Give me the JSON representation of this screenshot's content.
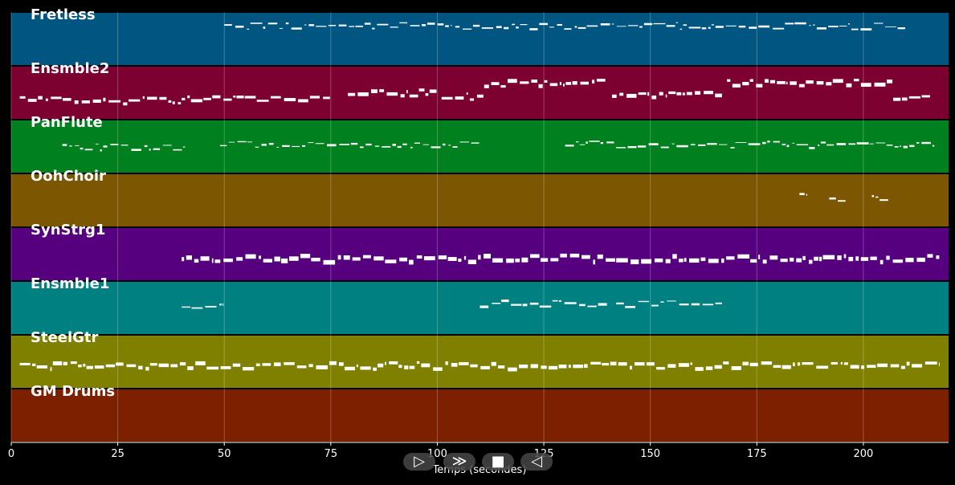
{
  "chart_data": {
    "type": "piano-roll",
    "xlabel": "Temps (secondes)",
    "xlim": [
      0,
      220
    ],
    "xticks": [
      0,
      25,
      50,
      75,
      100,
      125,
      150,
      175,
      200
    ],
    "grid": true,
    "tracks": [
      {
        "name": "Fretless",
        "color": "#005680",
        "segments": [
          [
            50,
            210,
            0.25,
            0.8
          ]
        ]
      },
      {
        "name": "Ensmble2",
        "color": "#7c0030",
        "segments": [
          [
            2,
            40,
            0.62,
            2.5
          ],
          [
            40,
            75,
            0.6,
            2.5
          ],
          [
            79,
            100,
            0.48,
            3
          ],
          [
            101,
            111,
            0.55,
            2.5
          ],
          [
            111,
            140,
            0.3,
            3
          ],
          [
            141,
            167,
            0.5,
            3
          ],
          [
            168,
            207,
            0.3,
            3
          ],
          [
            207,
            216,
            0.55,
            2.5
          ]
        ]
      },
      {
        "name": "PanFlute",
        "color": "#00801e",
        "segments": [
          [
            12,
            41,
            0.5,
            0.8
          ],
          [
            49,
            110,
            0.45,
            0.8
          ],
          [
            130,
            217,
            0.45,
            0.8
          ]
        ]
      },
      {
        "name": "OohChoir",
        "color": "#7c5600",
        "segments": [
          [
            185,
            187,
            0.4,
            1.5
          ],
          [
            192,
            196,
            0.45,
            1.5
          ],
          [
            202,
            206,
            0.45,
            1.5
          ]
        ]
      },
      {
        "name": "SynStrg1",
        "color": "#560080",
        "segments": [
          [
            40,
            218,
            0.55,
            4
          ]
        ]
      },
      {
        "name": "Ensmble1",
        "color": "#008080",
        "segments": [
          [
            40,
            50,
            0.45,
            1.2
          ],
          [
            110,
            140,
            0.4,
            1.5
          ],
          [
            142,
            167,
            0.42,
            1
          ]
        ]
      },
      {
        "name": "SteelGtr",
        "color": "#808000",
        "segments": [
          [
            2,
            218,
            0.55,
            3
          ]
        ]
      },
      {
        "name": "GM Drums",
        "color": "#7c2000",
        "segments": []
      }
    ]
  },
  "controls": {
    "play": "▷",
    "next": "≫",
    "stop": "■",
    "prev": "◁"
  }
}
